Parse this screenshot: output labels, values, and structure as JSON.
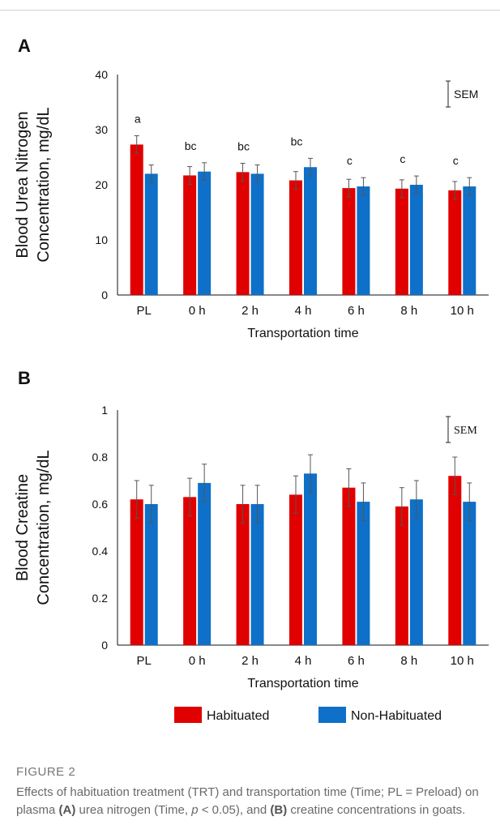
{
  "colors": {
    "habituated": "#e00000",
    "non_habituated": "#0e70c8",
    "axis": "#111111",
    "errorbar": "#555555"
  },
  "legend": [
    {
      "name": "Habituated",
      "color": "#e00000"
    },
    {
      "name": "Non-Habituated",
      "color": "#0e70c8"
    }
  ],
  "chart_data": [
    {
      "panel": "A",
      "type": "bar",
      "ylabel_line1": "Blood Urea Nitrogen",
      "ylabel_line2": "Concentration, mg/dL",
      "xlabel": "Transportation time",
      "ylim": [
        0,
        40
      ],
      "yticks": [
        0,
        10,
        20,
        30,
        40
      ],
      "ytick_labels": [
        "0",
        "10",
        "20",
        "30",
        "40"
      ],
      "categories": [
        "PL",
        "0 h",
        "2 h",
        "4 h",
        "6 h",
        "8 h",
        "10 h"
      ],
      "series": [
        {
          "name": "Habituated",
          "values": [
            27.3,
            21.7,
            22.3,
            20.8,
            19.4,
            19.3,
            19.0
          ],
          "errors": [
            1.6,
            1.6,
            1.6,
            1.6,
            1.6,
            1.6,
            1.6
          ]
        },
        {
          "name": "Non-Habituated",
          "values": [
            22.0,
            22.4,
            22.0,
            23.2,
            19.7,
            20.0,
            19.7
          ],
          "errors": [
            1.6,
            1.6,
            1.6,
            1.6,
            1.6,
            1.6,
            1.6
          ]
        }
      ],
      "annotations": [
        "a",
        "bc",
        "bc",
        "bc",
        "c",
        "c",
        "c"
      ],
      "sem_label": "SEM",
      "grid": false
    },
    {
      "panel": "B",
      "type": "bar",
      "ylabel_line1": "Blood Creatine",
      "ylabel_line2": "Concentration, mg/dL",
      "xlabel": "Transportation time",
      "ylim": [
        0,
        1
      ],
      "yticks": [
        0,
        0.2,
        0.4,
        0.6,
        0.8,
        1
      ],
      "ytick_labels": [
        "0",
        "0.2",
        "0.4",
        "0.6",
        "0.8",
        "1"
      ],
      "categories": [
        "PL",
        "0 h",
        "2 h",
        "4 h",
        "6 h",
        "8 h",
        "10 h"
      ],
      "series": [
        {
          "name": "Habituated",
          "values": [
            0.62,
            0.63,
            0.6,
            0.64,
            0.67,
            0.59,
            0.72
          ],
          "errors": [
            0.08,
            0.08,
            0.08,
            0.08,
            0.08,
            0.08,
            0.08
          ]
        },
        {
          "name": "Non-Habituated",
          "values": [
            0.6,
            0.69,
            0.6,
            0.73,
            0.61,
            0.62,
            0.61
          ],
          "errors": [
            0.08,
            0.08,
            0.08,
            0.08,
            0.08,
            0.08,
            0.08
          ]
        }
      ],
      "sem_label": "SEM",
      "grid": false
    }
  ],
  "caption": {
    "label": "FIGURE 2",
    "text_1": "Effects of habituation treatment (TRT) and transportation time (Time; PL = Preload) on plasma ",
    "a": "(A)",
    "text_2": " urea nitrogen (Time, ",
    "p": "p",
    "text_3": " < 0.05), and ",
    "b": "(B)",
    "text_4": " creatine concentrations in goats."
  }
}
